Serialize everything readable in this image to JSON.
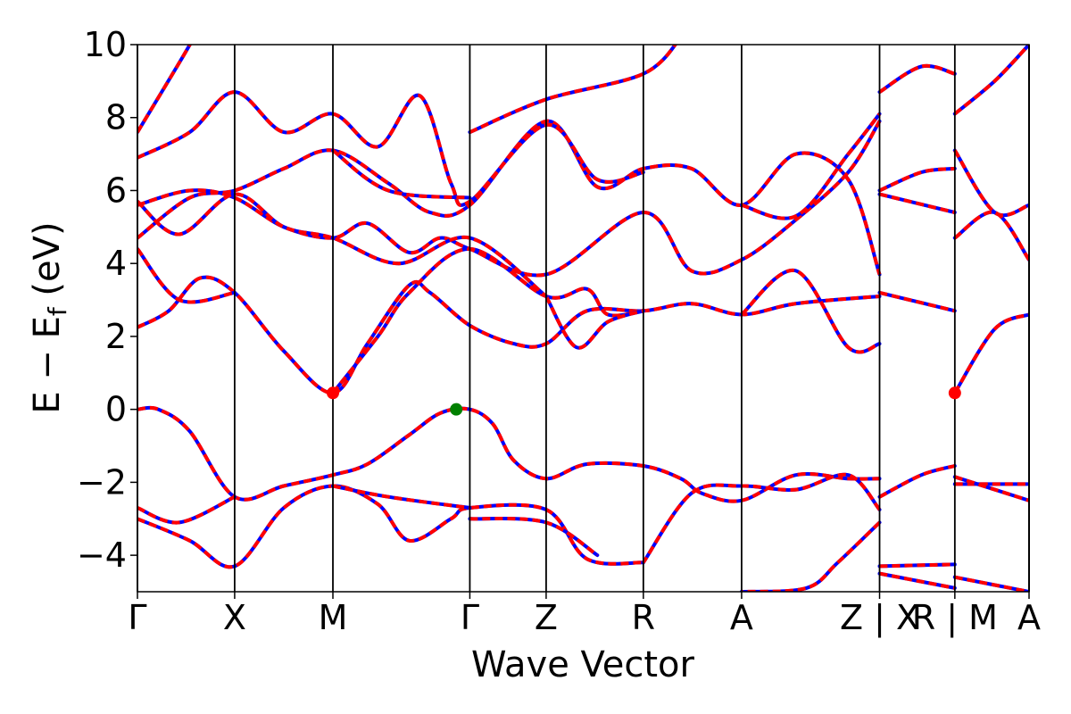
{
  "chart_data": {
    "type": "line",
    "title": "",
    "xlabel": "Wave Vector",
    "ylabel": "E − Eₑ (eV)",
    "ylabel_main": "E − E",
    "ylabel_sub": "f",
    "ylabel_unit": " (eV)",
    "ylim": [
      -5,
      10
    ],
    "yticks": [
      -4,
      -2,
      0,
      2,
      4,
      6,
      8,
      10
    ],
    "ytick_labels": [
      "−4",
      "−2",
      "0",
      "2",
      "4",
      "6",
      "8",
      "10"
    ],
    "xlim": [
      0,
      1
    ],
    "kpoints": [
      {
        "label": "Γ",
        "x": 0.0
      },
      {
        "label": "X",
        "x": 0.093
      },
      {
        "label": "M",
        "x": 0.187
      },
      {
        "label": "Γ",
        "x": 0.318
      },
      {
        "label": "Z",
        "x": 0.391
      },
      {
        "label": "R",
        "x": 0.484
      },
      {
        "label": "A",
        "x": 0.578
      },
      {
        "label": "Z | X",
        "x": 0.71
      },
      {
        "label": "R | M",
        "x": 0.782
      },
      {
        "label": "A",
        "x": 0.853
      }
    ],
    "kpoint_label_overrides": [
      {
        "label": "Z | X",
        "x": 0.71
      },
      {
        "label": "R | M",
        "x": 0.782
      }
    ],
    "boundaries": [
      0.0,
      0.093,
      0.187,
      0.318,
      0.391,
      0.484,
      0.578,
      0.71,
      0.782,
      0.853
    ],
    "x_end": 0.853,
    "series_colors": {
      "primary": "#ff0000",
      "secondary": "#0000ff"
    },
    "markers": [
      {
        "x": 0.187,
        "y": 0.45,
        "color": "#ff0000",
        "meaning": "CBM"
      },
      {
        "x": 0.305,
        "y": 0.0,
        "color": "#008000",
        "meaning": "VBM"
      },
      {
        "x": 0.782,
        "y": 0.45,
        "color": "#ff0000",
        "meaning": "CBM"
      }
    ],
    "bands": [
      {
        "points": [
          [
            0,
            0.0
          ],
          [
            0.02,
            0.0
          ],
          [
            0.05,
            -0.6
          ],
          [
            0.093,
            -2.4
          ],
          [
            0.14,
            -2.1
          ],
          [
            0.187,
            -1.8
          ],
          [
            0.22,
            -1.5
          ],
          [
            0.26,
            -0.7
          ],
          [
            0.29,
            -0.1
          ],
          [
            0.318,
            0.0
          ],
          [
            0.34,
            -0.4
          ],
          [
            0.36,
            -1.4
          ],
          [
            0.391,
            -1.9
          ],
          [
            0.43,
            -1.5
          ],
          [
            0.484,
            -1.55
          ],
          [
            0.52,
            -1.9
          ],
          [
            0.54,
            -2.3
          ],
          [
            0.578,
            -2.5
          ],
          [
            0.63,
            -1.8
          ],
          [
            0.68,
            -1.9
          ],
          [
            0.71,
            -1.9
          ]
        ]
      },
      {
        "points": [
          [
            0.71,
            -2.4
          ],
          [
            0.75,
            -1.8
          ],
          [
            0.782,
            -1.55
          ]
        ]
      },
      {
        "points": [
          [
            0.782,
            -2.05
          ],
          [
            0.853,
            -2.05
          ]
        ]
      },
      {
        "points": [
          [
            0,
            -2.7
          ],
          [
            0.04,
            -3.1
          ],
          [
            0.093,
            -2.4
          ]
        ]
      },
      {
        "points": [
          [
            0,
            -3.0
          ],
          [
            0.05,
            -3.6
          ],
          [
            0.093,
            -4.3
          ],
          [
            0.14,
            -2.7
          ],
          [
            0.187,
            -2.1
          ],
          [
            0.23,
            -2.6
          ],
          [
            0.26,
            -3.6
          ],
          [
            0.3,
            -3.0
          ],
          [
            0.318,
            -2.7
          ],
          [
            0.391,
            -2.75
          ],
          [
            0.43,
            -4.1
          ],
          [
            0.484,
            -4.2
          ]
        ]
      },
      {
        "points": [
          [
            0.318,
            -3.0
          ],
          [
            0.391,
            -3.1
          ],
          [
            0.44,
            -4.0
          ]
        ]
      },
      {
        "points": [
          [
            0.187,
            -2.1
          ],
          [
            0.24,
            -2.4
          ],
          [
            0.318,
            -2.7
          ]
        ]
      },
      {
        "points": [
          [
            0,
            2.25
          ],
          [
            0.03,
            2.7
          ],
          [
            0.06,
            3.6
          ],
          [
            0.093,
            3.2
          ],
          [
            0.14,
            1.6
          ],
          [
            0.187,
            0.45
          ],
          [
            0.22,
            1.8
          ],
          [
            0.26,
            3.4
          ],
          [
            0.28,
            3.2
          ],
          [
            0.318,
            2.3
          ],
          [
            0.36,
            1.8
          ],
          [
            0.391,
            1.8
          ],
          [
            0.43,
            2.7
          ],
          [
            0.484,
            2.7
          ],
          [
            0.53,
            2.9
          ],
          [
            0.578,
            2.6
          ],
          [
            0.63,
            2.9
          ],
          [
            0.71,
            3.1
          ]
        ]
      },
      {
        "points": [
          [
            0,
            4.4
          ],
          [
            0.04,
            3.0
          ],
          [
            0.093,
            3.2
          ]
        ]
      },
      {
        "points": [
          [
            0.187,
            0.45
          ],
          [
            0.23,
            2.0
          ],
          [
            0.26,
            3.2
          ],
          [
            0.318,
            4.4
          ],
          [
            0.391,
            3.1
          ],
          [
            0.43,
            3.3
          ],
          [
            0.45,
            2.6
          ],
          [
            0.484,
            2.7
          ]
        ]
      },
      {
        "points": [
          [
            0.391,
            3.1
          ],
          [
            0.42,
            1.7
          ],
          [
            0.45,
            2.4
          ],
          [
            0.484,
            2.7
          ]
        ]
      },
      {
        "points": [
          [
            0.578,
            2.6
          ],
          [
            0.63,
            3.8
          ],
          [
            0.68,
            1.7
          ],
          [
            0.71,
            1.8
          ]
        ]
      },
      {
        "points": [
          [
            0.71,
            3.2
          ],
          [
            0.782,
            2.7
          ]
        ]
      },
      {
        "points": [
          [
            0.782,
            0.45
          ],
          [
            0.82,
            2.2
          ],
          [
            0.853,
            2.6
          ]
        ]
      },
      {
        "points": [
          [
            0,
            4.7
          ],
          [
            0.05,
            5.8
          ],
          [
            0.093,
            6.0
          ],
          [
            0.14,
            6.6
          ],
          [
            0.187,
            7.1
          ],
          [
            0.24,
            6.2
          ],
          [
            0.28,
            5.4
          ],
          [
            0.318,
            5.6
          ],
          [
            0.391,
            7.9
          ],
          [
            0.44,
            6.1
          ],
          [
            0.484,
            6.6
          ],
          [
            0.53,
            6.6
          ],
          [
            0.578,
            5.6
          ],
          [
            0.63,
            7.0
          ],
          [
            0.68,
            6.3
          ],
          [
            0.71,
            3.7
          ]
        ]
      },
      {
        "points": [
          [
            0,
            5.6
          ],
          [
            0.05,
            6.0
          ],
          [
            0.093,
            5.8
          ],
          [
            0.14,
            5.0
          ],
          [
            0.187,
            4.7
          ],
          [
            0.22,
            5.1
          ],
          [
            0.26,
            4.3
          ],
          [
            0.29,
            4.7
          ],
          [
            0.318,
            4.4
          ],
          [
            0.391,
            3.7
          ],
          [
            0.484,
            5.4
          ],
          [
            0.53,
            3.8
          ],
          [
            0.578,
            4.1
          ],
          [
            0.63,
            5.2
          ],
          [
            0.68,
            6.5
          ],
          [
            0.71,
            7.9
          ]
        ]
      },
      {
        "points": [
          [
            0,
            5.7
          ],
          [
            0.04,
            4.8
          ],
          [
            0.093,
            5.9
          ],
          [
            0.14,
            5.0
          ],
          [
            0.187,
            4.7
          ],
          [
            0.25,
            4.0
          ],
          [
            0.318,
            4.7
          ],
          [
            0.391,
            3.1
          ]
        ]
      },
      {
        "points": [
          [
            0,
            6.9
          ],
          [
            0.05,
            7.6
          ],
          [
            0.093,
            8.7
          ],
          [
            0.14,
            7.6
          ],
          [
            0.187,
            8.1
          ],
          [
            0.23,
            7.2
          ],
          [
            0.27,
            8.6
          ],
          [
            0.3,
            6.2
          ],
          [
            0.318,
            5.7
          ],
          [
            0.391,
            7.8
          ],
          [
            0.44,
            6.3
          ],
          [
            0.484,
            6.5
          ]
        ]
      },
      {
        "points": [
          [
            0,
            7.6
          ],
          [
            0.04,
            9.5
          ],
          [
            0.06,
            10.5
          ]
        ]
      },
      {
        "points": [
          [
            0.187,
            7.1
          ],
          [
            0.24,
            6.0
          ],
          [
            0.318,
            5.8
          ]
        ]
      },
      {
        "points": [
          [
            0.318,
            7.6
          ],
          [
            0.391,
            8.5
          ],
          [
            0.484,
            9.2
          ],
          [
            0.52,
            10.2
          ]
        ]
      },
      {
        "points": [
          [
            0.578,
            5.6
          ],
          [
            0.63,
            5.3
          ],
          [
            0.68,
            7.0
          ],
          [
            0.71,
            8.1
          ]
        ]
      },
      {
        "points": [
          [
            0.71,
            8.7
          ],
          [
            0.75,
            9.4
          ],
          [
            0.782,
            9.2
          ]
        ]
      },
      {
        "points": [
          [
            0.71,
            6.0
          ],
          [
            0.75,
            6.5
          ],
          [
            0.782,
            6.6
          ]
        ]
      },
      {
        "points": [
          [
            0.71,
            5.9
          ],
          [
            0.782,
            5.4
          ]
        ]
      },
      {
        "points": [
          [
            0.782,
            8.1
          ],
          [
            0.82,
            9.0
          ],
          [
            0.853,
            10.0
          ]
        ]
      },
      {
        "points": [
          [
            0.782,
            7.1
          ],
          [
            0.82,
            5.4
          ],
          [
            0.853,
            5.6
          ]
        ]
      },
      {
        "points": [
          [
            0.782,
            4.7
          ],
          [
            0.82,
            5.4
          ],
          [
            0.853,
            4.1
          ]
        ]
      },
      {
        "points": [
          [
            0.71,
            -2.75
          ],
          [
            0.68,
            -1.8
          ],
          [
            0.63,
            -2.2
          ],
          [
            0.578,
            -2.1
          ],
          [
            0.53,
            -2.3
          ],
          [
            0.484,
            -4.2
          ]
        ]
      },
      {
        "points": [
          [
            0.71,
            -3.1
          ],
          [
            0.67,
            -4.2
          ],
          [
            0.64,
            -4.9
          ],
          [
            0.578,
            -5.0
          ]
        ]
      },
      {
        "points": [
          [
            0.71,
            -4.3
          ],
          [
            0.782,
            -4.25
          ]
        ]
      },
      {
        "points": [
          [
            0.71,
            -4.5
          ],
          [
            0.782,
            -4.9
          ]
        ]
      },
      {
        "points": [
          [
            0.782,
            -4.6
          ],
          [
            0.853,
            -5.0
          ]
        ]
      },
      {
        "points": [
          [
            0.782,
            -1.85
          ],
          [
            0.853,
            -2.5
          ]
        ]
      }
    ]
  }
}
